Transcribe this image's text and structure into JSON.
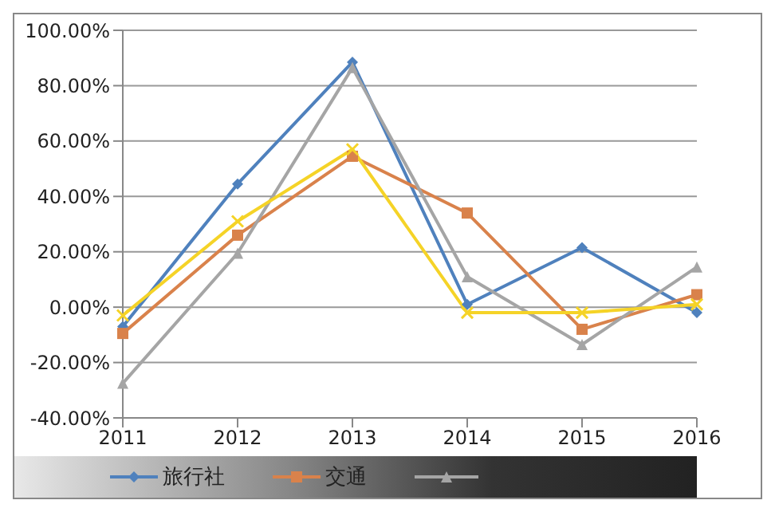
{
  "chart_data": {
    "type": "line",
    "categories": [
      "2011",
      "2012",
      "2013",
      "2014",
      "2015",
      "2016"
    ],
    "series": [
      {
        "name": "旅行社",
        "color": "#4f81bd",
        "marker": "diamond",
        "values": [
          -7,
          44.5,
          88.5,
          1,
          21.5,
          -2
        ]
      },
      {
        "name": "交通",
        "color": "#d9824b",
        "marker": "square",
        "values": [
          -9.5,
          26,
          54.5,
          34,
          -8,
          4.5
        ]
      },
      {
        "color": "#a5a5a5",
        "marker": "triangle",
        "values": [
          -27.5,
          19.5,
          86.5,
          11,
          -13.5,
          14.5
        ]
      },
      {
        "color": "#f5d327",
        "marker": "cross",
        "values": [
          -3,
          31,
          57,
          -2,
          -2,
          1
        ]
      }
    ],
    "ylim": [
      -40,
      100
    ],
    "yticks": [
      {
        "value": -40,
        "label": "-40.00%"
      },
      {
        "value": -20,
        "label": "-20.00%"
      },
      {
        "value": 0,
        "label": "0.00%"
      },
      {
        "value": 20,
        "label": "20.00%"
      },
      {
        "value": 40,
        "label": "40.00%"
      },
      {
        "value": 60,
        "label": "60.00%"
      },
      {
        "value": 80,
        "label": "80.00%"
      },
      {
        "value": 100,
        "label": "100.00%"
      }
    ],
    "grid": "y",
    "legend": "bottom"
  }
}
